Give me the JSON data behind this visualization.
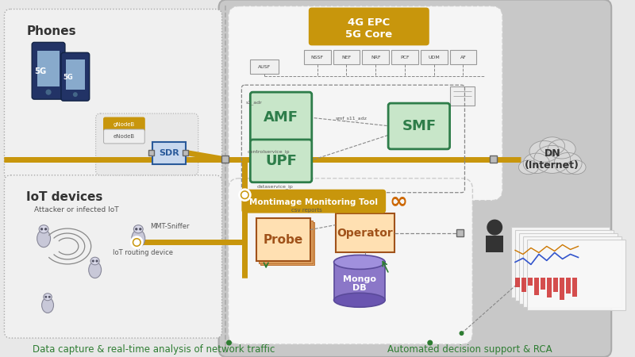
{
  "bg_color": "#e8e8e8",
  "bottom_text_left": "Data capture & real-time analysis of network traffic",
  "bottom_text_right": "Automated decision support & RCA",
  "core_label": "4G EPC\n5G Core",
  "monitor_label": "Montimage Monitoring Tool",
  "core_nfs": [
    "NSSF",
    "NEF",
    "NRF",
    "PCF",
    "UDM",
    "AF"
  ],
  "gold": "#C8960C",
  "green_box": "#5aab6e",
  "green_box_dark": "#2e7d4a",
  "green_box_bg": "#c8e6c9",
  "orange_box": "#e8832a",
  "orange_box_dark": "#a0521a",
  "orange_box_bg": "#ffe0b2",
  "blue_box": "#5b9bd5",
  "blue_box_dark": "#2a5a9a",
  "gray_panel": "#c8c8c8",
  "gray_panel_edge": "#aaaaaa",
  "white_panel": "#f5f5f5",
  "white_panel_edge": "#cccccc",
  "cloud_color": "#d8d8d8",
  "cloud_edge": "#999999",
  "dashed_color": "#888888",
  "connector_color": "#999999",
  "connector_edge": "#666666",
  "green_text": "#2e7d32",
  "nf_bg": "#f0f0f0",
  "nf_edge": "#999999",
  "purple_cyl": "#8b77c8",
  "purple_cyl_dark": "#5a4a9a",
  "person_color": "#333333"
}
